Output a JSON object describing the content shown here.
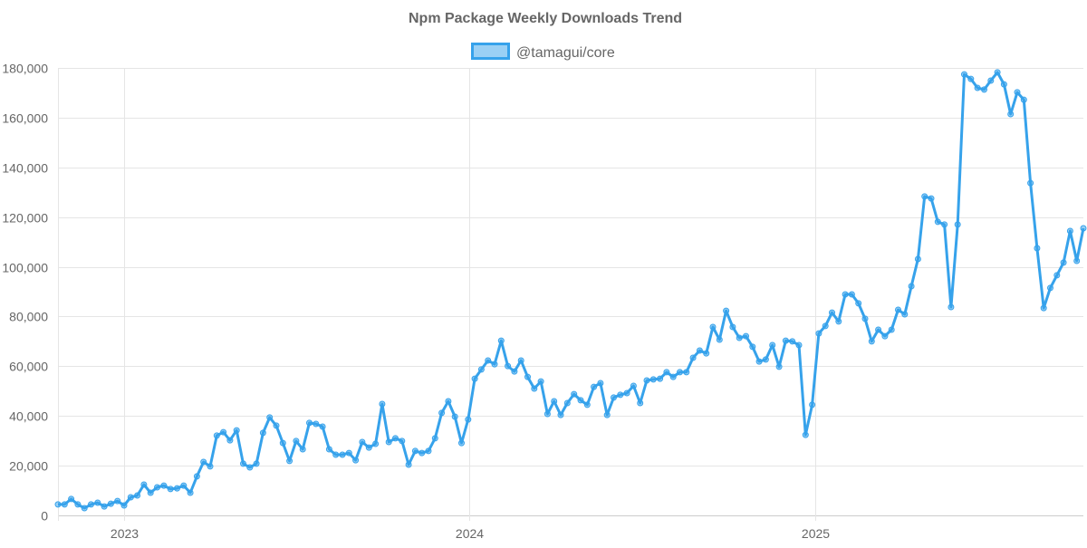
{
  "chart_data": {
    "type": "line",
    "title": "Npm Package Weekly Downloads Trend",
    "xlabel": "",
    "ylabel": "",
    "ylim": [
      0,
      180000
    ],
    "yticks": [
      "0",
      "20,000",
      "40,000",
      "60,000",
      "80,000",
      "100,000",
      "120,000",
      "140,000",
      "160,000",
      "180,000"
    ],
    "ytick_values": [
      0,
      20000,
      40000,
      60000,
      80000,
      100000,
      120000,
      140000,
      160000,
      180000
    ],
    "xticks": [
      "2023",
      "2024",
      "2025"
    ],
    "xtick_dates": [
      "2023-01-01",
      "2024-01-01",
      "2025-01-01"
    ],
    "xlim": [
      "2022-10-23",
      "2025-10-12"
    ],
    "grid": true,
    "legend_position": "top",
    "colors": {
      "line": "#36a2eb",
      "fill": "#9ad0f5",
      "grid": "#e5e5e5",
      "text": "#666666"
    },
    "x": [
      "2022-10-23",
      "2022-10-30",
      "2022-11-06",
      "2022-11-13",
      "2022-11-20",
      "2022-11-27",
      "2022-12-04",
      "2022-12-11",
      "2022-12-18",
      "2022-12-25",
      "2023-01-01",
      "2023-01-08",
      "2023-01-15",
      "2023-01-22",
      "2023-01-29",
      "2023-02-05",
      "2023-02-12",
      "2023-02-19",
      "2023-02-26",
      "2023-03-05",
      "2023-03-12",
      "2023-03-19",
      "2023-03-26",
      "2023-04-02",
      "2023-04-09",
      "2023-04-16",
      "2023-04-23",
      "2023-04-30",
      "2023-05-07",
      "2023-05-14",
      "2023-05-21",
      "2023-05-28",
      "2023-06-04",
      "2023-06-11",
      "2023-06-18",
      "2023-06-25",
      "2023-07-02",
      "2023-07-09",
      "2023-07-16",
      "2023-07-23",
      "2023-07-30",
      "2023-08-06",
      "2023-08-13",
      "2023-08-20",
      "2023-08-27",
      "2023-09-03",
      "2023-09-10",
      "2023-09-17",
      "2023-09-24",
      "2023-10-01",
      "2023-10-08",
      "2023-10-15",
      "2023-10-22",
      "2023-10-29",
      "2023-11-05",
      "2023-11-12",
      "2023-11-19",
      "2023-11-26",
      "2023-12-03",
      "2023-12-10",
      "2023-12-17",
      "2023-12-24",
      "2023-12-31",
      "2024-01-07",
      "2024-01-14",
      "2024-01-21",
      "2024-01-28",
      "2024-02-04",
      "2024-02-11",
      "2024-02-18",
      "2024-02-25",
      "2024-03-03",
      "2024-03-10",
      "2024-03-17",
      "2024-03-24",
      "2024-03-31",
      "2024-04-07",
      "2024-04-14",
      "2024-04-21",
      "2024-04-28",
      "2024-05-05",
      "2024-05-12",
      "2024-05-19",
      "2024-05-26",
      "2024-06-02",
      "2024-06-09",
      "2024-06-16",
      "2024-06-23",
      "2024-06-30",
      "2024-07-07",
      "2024-07-14",
      "2024-07-21",
      "2024-07-28",
      "2024-08-04",
      "2024-08-11",
      "2024-08-18",
      "2024-08-25",
      "2024-09-01",
      "2024-09-08",
      "2024-09-15",
      "2024-09-22",
      "2024-09-29",
      "2024-10-06",
      "2024-10-13",
      "2024-10-20",
      "2024-10-27",
      "2024-11-03",
      "2024-11-10",
      "2024-11-17",
      "2024-11-24",
      "2024-12-01",
      "2024-12-08",
      "2024-12-15",
      "2024-12-22",
      "2024-12-29",
      "2025-01-05",
      "2025-01-12",
      "2025-01-19",
      "2025-01-26",
      "2025-02-02",
      "2025-02-09",
      "2025-02-16",
      "2025-02-23",
      "2025-03-02",
      "2025-03-09",
      "2025-03-16",
      "2025-03-23",
      "2025-03-30",
      "2025-04-06",
      "2025-04-13",
      "2025-04-20",
      "2025-04-27",
      "2025-05-04",
      "2025-05-11",
      "2025-05-18",
      "2025-05-25",
      "2025-06-01",
      "2025-06-08",
      "2025-06-15",
      "2025-06-22",
      "2025-06-29",
      "2025-07-06",
      "2025-07-13",
      "2025-07-20",
      "2025-07-27",
      "2025-08-03",
      "2025-08-10",
      "2025-08-17",
      "2025-08-24",
      "2025-08-31",
      "2025-09-07",
      "2025-09-14",
      "2025-09-21",
      "2025-09-28",
      "2025-10-05",
      "2025-10-12"
    ],
    "series": [
      {
        "name": "@tamagui/core",
        "values": [
          4400,
          4400,
          6600,
          4400,
          2900,
          4400,
          5100,
          3600,
          4700,
          5800,
          4000,
          7300,
          8000,
          12400,
          9100,
          11300,
          12000,
          10600,
          10900,
          12000,
          9100,
          15700,
          21500,
          19700,
          32100,
          33500,
          30200,
          34200,
          20800,
          19300,
          20800,
          33200,
          39400,
          36100,
          29100,
          21900,
          29900,
          26600,
          37200,
          36800,
          35700,
          26600,
          24400,
          24400,
          25100,
          22200,
          29500,
          27300,
          28800,
          44800,
          29500,
          31000,
          29900,
          20400,
          25900,
          25100,
          25900,
          31000,
          41200,
          45900,
          39700,
          29100,
          38600,
          55000,
          58700,
          62300,
          60800,
          70300,
          60100,
          57900,
          62300,
          55700,
          51000,
          53900,
          40800,
          45900,
          40400,
          45200,
          48800,
          46300,
          44500,
          51700,
          53200,
          40400,
          47400,
          48500,
          49200,
          52100,
          45200,
          54300,
          54700,
          55000,
          57600,
          55700,
          57600,
          57600,
          63400,
          66300,
          65200,
          75800,
          70700,
          82300,
          75800,
          71400,
          72100,
          67800,
          61900,
          62700,
          68500,
          59800,
          70300,
          70000,
          68500,
          32400,
          44500,
          73200,
          76200,
          81600,
          78000,
          88900,
          88900,
          85300,
          79100,
          70000,
          74700,
          72100,
          74700,
          82700,
          80900,
          92200,
          103100,
          128300,
          127500,
          118100,
          117000,
          83800,
          117000,
          177400,
          175600,
          172000,
          171300,
          174900,
          178200,
          173400,
          161400,
          170200,
          167200,
          133700,
          107500,
          83400,
          91500,
          96600,
          101700,
          114400,
          102400,
          115500
        ]
      }
    ]
  }
}
